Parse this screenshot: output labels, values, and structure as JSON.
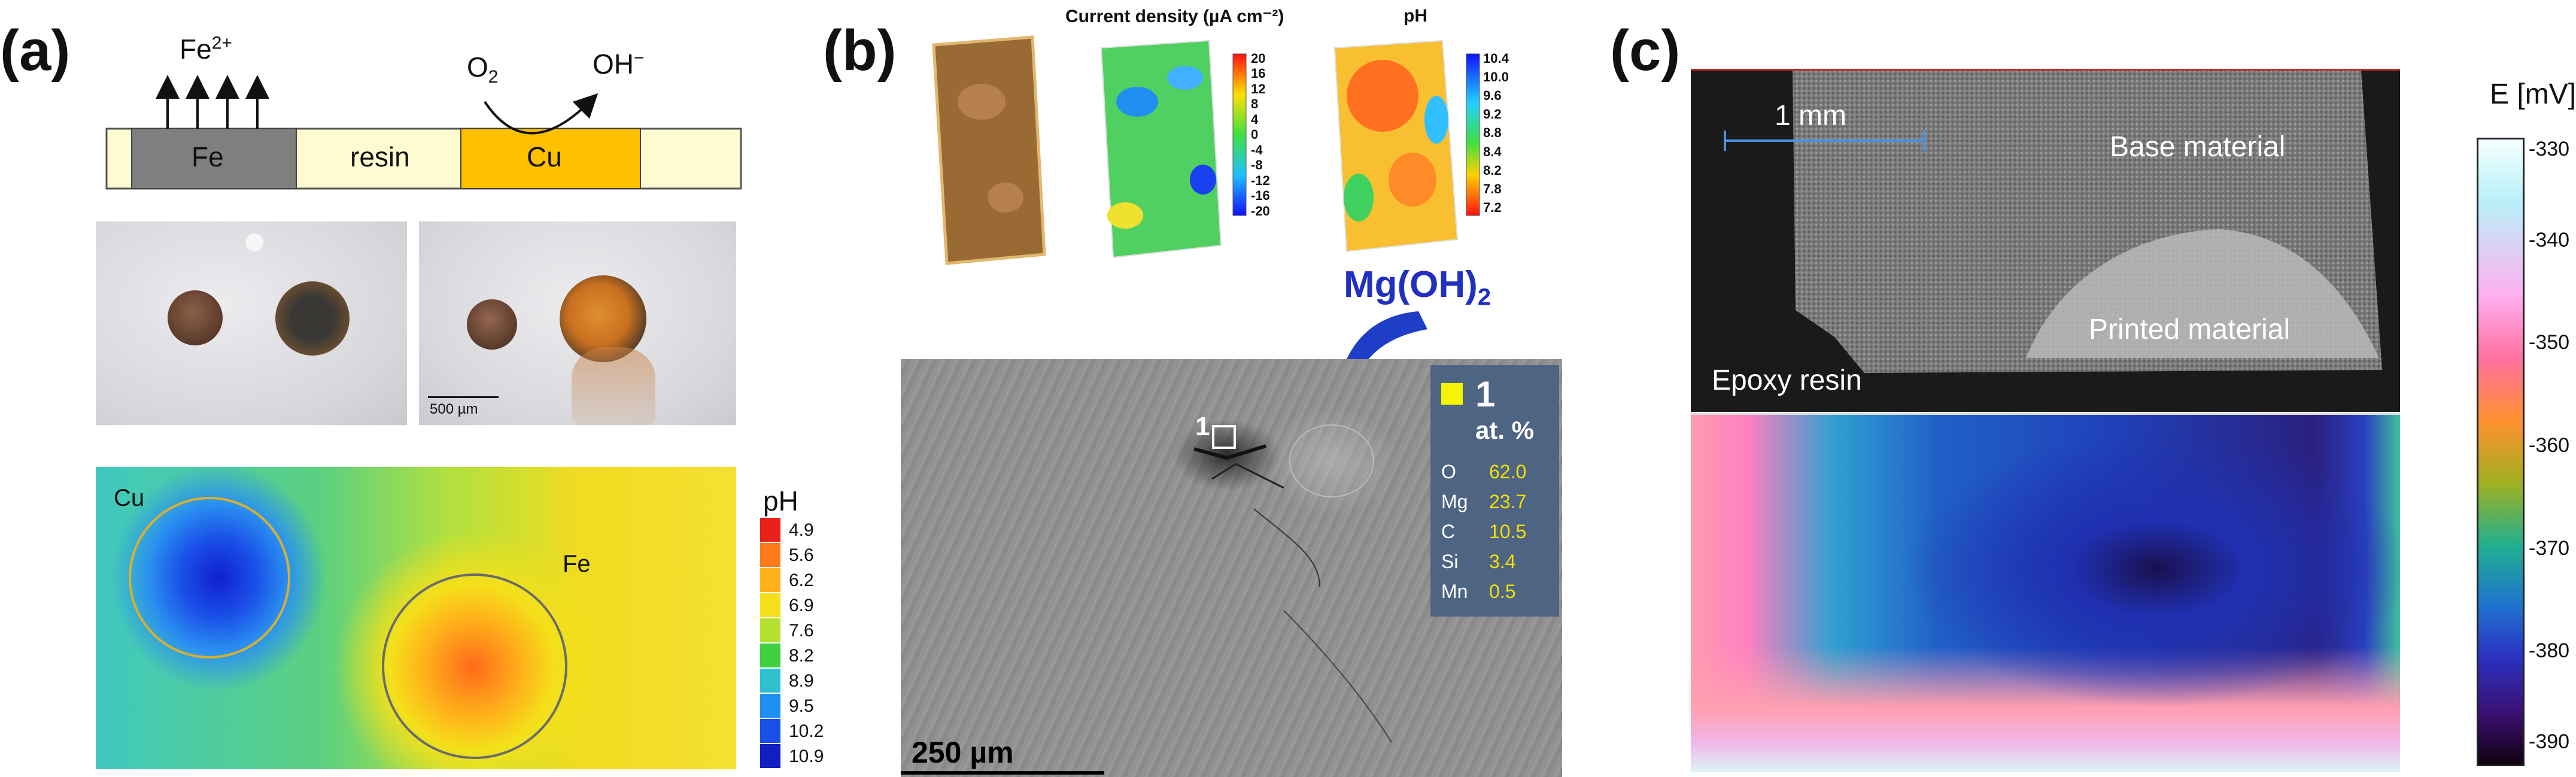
{
  "panel_a": {
    "label": "(a)",
    "schematic": {
      "ion_fe": "Fe",
      "ion_fe_charge": "2+",
      "o2": "O",
      "o2_sub": "2",
      "oh": "OH",
      "oh_sup": "−",
      "seg_fe": "Fe",
      "seg_resin": "resin",
      "seg_cu": "Cu"
    },
    "photo_scalebar": "500 µm",
    "ph_map": {
      "label_cu": "Cu",
      "label_fe": "Fe",
      "legend_title": "pH",
      "legend_values": [
        "4.9",
        "5.6",
        "6.2",
        "6.9",
        "7.6",
        "8.2",
        "8.9",
        "9.5",
        "10.2",
        "10.9"
      ],
      "legend_colors": [
        "#e8201a",
        "#ff7a1a",
        "#ffb01a",
        "#f4e01a",
        "#b4e030",
        "#40d040",
        "#2fc0d0",
        "#1e90f0",
        "#1a50e8",
        "#1020c0"
      ]
    }
  },
  "panel_b": {
    "label": "(b)",
    "map_title_current": "Current density (µA cm⁻²)",
    "map_title_ph": "pH",
    "current_scale": [
      "20",
      "16",
      "12",
      "8",
      "4",
      "0",
      "-4",
      "-8",
      "-12",
      "-16",
      "-20"
    ],
    "ph_scale": [
      "10.4",
      "10.0",
      "9.6",
      "9.2",
      "8.8",
      "8.4",
      "8.2",
      "7.8",
      "7.2"
    ],
    "callout": "Mg(OH)",
    "callout_sub": "2",
    "sem_marker": "1",
    "sem_scalebar": "250 µm",
    "composition": {
      "marker": "1",
      "unit": "at. %",
      "rows": [
        {
          "el": "O",
          "val": "62.0"
        },
        {
          "el": "Mg",
          "val": "23.7"
        },
        {
          "el": "C",
          "val": "10.5"
        },
        {
          "el": "Si",
          "val": "3.4"
        },
        {
          "el": "Mn",
          "val": "0.5"
        }
      ]
    }
  },
  "panel_c": {
    "label": "(c)",
    "scalebar": "1 mm",
    "base_material": "Base material",
    "printed_material": "Printed material",
    "epoxy_resin": "Epoxy resin",
    "cbar_title": "E [mV]",
    "cbar_ticks": [
      "-330",
      "-340",
      "-350",
      "-360",
      "-370",
      "-380",
      "-390"
    ]
  }
}
